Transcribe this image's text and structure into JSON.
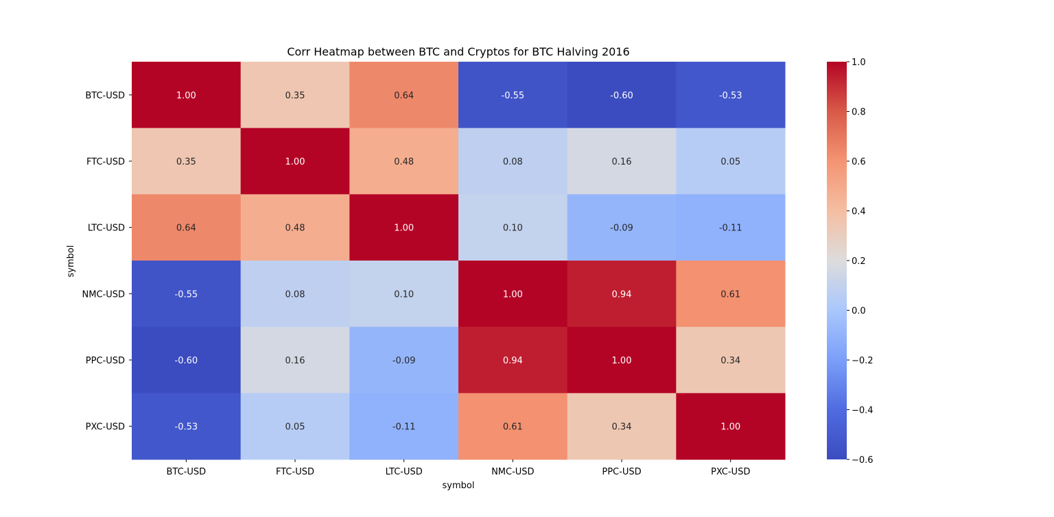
{
  "chart_data": {
    "type": "heatmap",
    "title": "Corr Heatmap between BTC and Cryptos for BTC Halving 2016",
    "xlabel": "symbol",
    "ylabel": "symbol",
    "x_categories": [
      "BTC-USD",
      "FTC-USD",
      "LTC-USD",
      "NMC-USD",
      "PPC-USD",
      "PXC-USD"
    ],
    "y_categories": [
      "BTC-USD",
      "FTC-USD",
      "LTC-USD",
      "NMC-USD",
      "PPC-USD",
      "PXC-USD"
    ],
    "values": [
      [
        1.0,
        0.35,
        0.64,
        -0.55,
        -0.6,
        -0.53
      ],
      [
        0.35,
        1.0,
        0.48,
        0.08,
        0.16,
        0.05
      ],
      [
        0.64,
        0.48,
        1.0,
        0.1,
        -0.09,
        -0.11
      ],
      [
        -0.55,
        0.08,
        0.1,
        1.0,
        0.94,
        0.61
      ],
      [
        -0.6,
        0.16,
        -0.09,
        0.94,
        1.0,
        0.34
      ],
      [
        -0.53,
        0.05,
        -0.11,
        0.61,
        0.34,
        1.0
      ]
    ],
    "value_format": "0.00",
    "colormap": "coolwarm",
    "color_range": [
      -0.6,
      1.0
    ],
    "colorbar_ticks": [
      1.0,
      0.8,
      0.6,
      0.4,
      0.2,
      0.0,
      -0.2,
      -0.4,
      -0.6
    ],
    "colorbar_tick_labels": [
      "1.0",
      "0.8",
      "0.6",
      "0.4",
      "0.2",
      "0.0",
      "−0.2",
      "−0.4",
      "−0.6"
    ],
    "colorbar_position": "right",
    "grid": false
  }
}
